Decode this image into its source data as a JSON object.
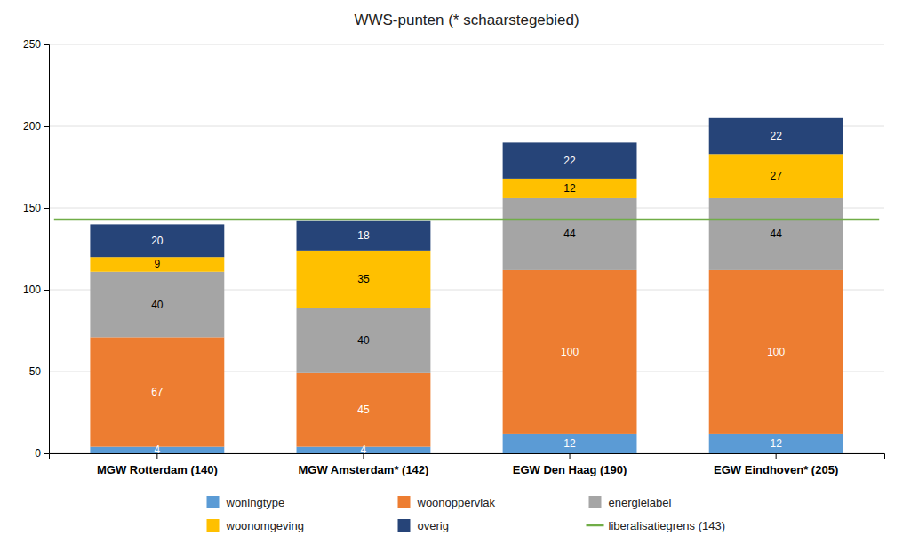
{
  "chart_data": {
    "type": "bar",
    "stacked": true,
    "title": "WWS-punten (* schaarstegebied)",
    "categories": [
      "MGW Rotterdam (140)",
      "MGW Amsterdam* (142)",
      "EGW Den Haag (190)",
      "EGW Eindhoven* (205)"
    ],
    "series": [
      {
        "name": "woningtype",
        "color": "#5B9BD5",
        "values": [
          4,
          4,
          12,
          12
        ]
      },
      {
        "name": "woonoppervlak",
        "color": "#ED7D31",
        "values": [
          67,
          45,
          100,
          100
        ]
      },
      {
        "name": "energielabel",
        "color": "#A5A5A5",
        "values": [
          40,
          40,
          44,
          44
        ]
      },
      {
        "name": "woonomgeving",
        "color": "#FFC000",
        "values": [
          9,
          35,
          12,
          27
        ]
      },
      {
        "name": "overig",
        "color": "#264478",
        "values": [
          20,
          18,
          22,
          22
        ]
      }
    ],
    "reference_lines": [
      {
        "name": "liberalisatiegrens (143)",
        "value": 143,
        "color": "#70AD47"
      }
    ],
    "ylim": [
      0,
      250
    ],
    "yticks": [
      0,
      50,
      100,
      150,
      200,
      250
    ],
    "grid": true,
    "data_labels": true,
    "legend": "bottom"
  }
}
